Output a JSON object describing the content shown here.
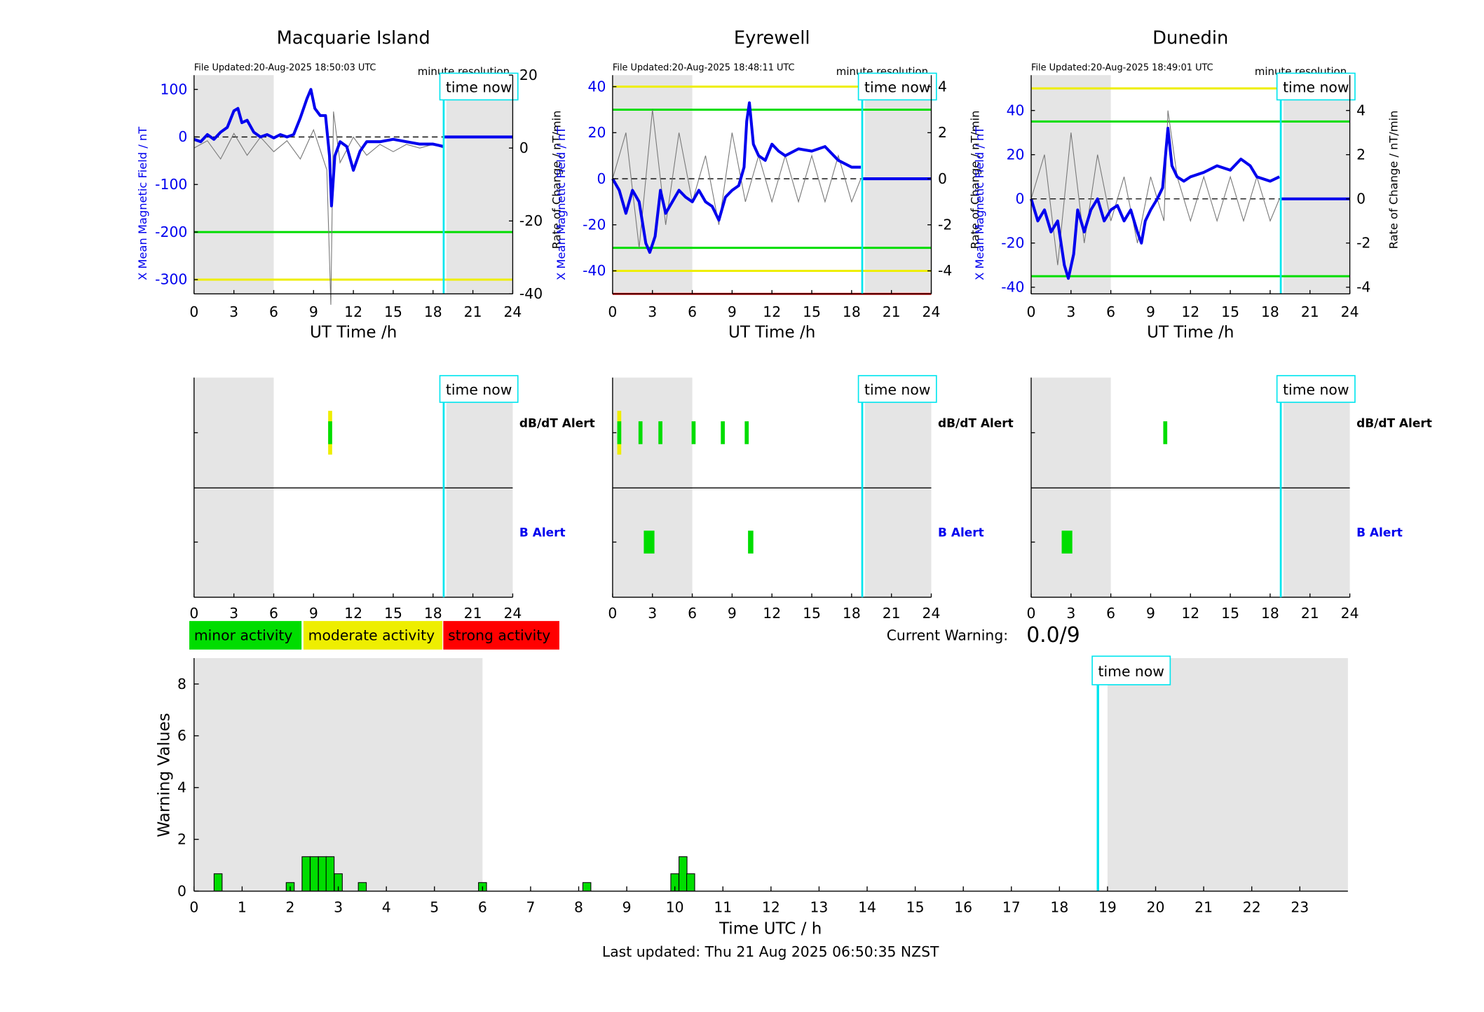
{
  "stations": [
    {
      "name": "Macquarie Island",
      "file_updated": "File Updated:20-Aug-2025 18:50:03 UTC",
      "resolution": "minute resolution",
      "ylabel_left": "X Mean Magnetic Field / nT",
      "ylabel_right": "Rate of Change / nT/min",
      "xlabel": "UT Time /h",
      "ylim": [
        -330,
        130
      ],
      "yticks": [
        100,
        0,
        -100,
        -200,
        -300
      ],
      "ylim_right": [
        -40,
        20
      ],
      "yticks_right": [
        20,
        0,
        -20,
        -40
      ],
      "threshold_lines": [
        {
          "value": -200,
          "color": "#00dd00"
        },
        {
          "value": -300,
          "color": "#eeee00"
        }
      ],
      "field_series": [
        [
          0,
          -5
        ],
        [
          0.5,
          -10
        ],
        [
          1,
          5
        ],
        [
          1.5,
          -5
        ],
        [
          2,
          10
        ],
        [
          2.5,
          20
        ],
        [
          3,
          55
        ],
        [
          3.3,
          60
        ],
        [
          3.6,
          30
        ],
        [
          4,
          35
        ],
        [
          4.5,
          10
        ],
        [
          5,
          0
        ],
        [
          5.5,
          5
        ],
        [
          6,
          -2
        ],
        [
          6.5,
          5
        ],
        [
          7,
          0
        ],
        [
          7.5,
          5
        ],
        [
          8,
          40
        ],
        [
          8.5,
          80
        ],
        [
          8.8,
          100
        ],
        [
          9.1,
          60
        ],
        [
          9.5,
          45
        ],
        [
          9.9,
          45
        ],
        [
          10.2,
          -40
        ],
        [
          10.35,
          -145
        ],
        [
          10.6,
          -40
        ],
        [
          11,
          -10
        ],
        [
          11.5,
          -20
        ],
        [
          12,
          -70
        ],
        [
          12.5,
          -30
        ],
        [
          13,
          -10
        ],
        [
          14,
          -10
        ],
        [
          15,
          -5
        ],
        [
          16,
          -10
        ],
        [
          17,
          -15
        ],
        [
          18,
          -15
        ],
        [
          18.8,
          -20
        ]
      ],
      "roc_series": [
        [
          0,
          0
        ],
        [
          1,
          2
        ],
        [
          2,
          -3
        ],
        [
          3,
          4
        ],
        [
          4,
          -2
        ],
        [
          5,
          3
        ],
        [
          6,
          -1
        ],
        [
          7,
          2
        ],
        [
          8,
          -3
        ],
        [
          9,
          5
        ],
        [
          10,
          -6
        ],
        [
          10.3,
          -43
        ],
        [
          10.5,
          10
        ],
        [
          11,
          -4
        ],
        [
          12,
          3
        ],
        [
          13,
          -2
        ],
        [
          14,
          1
        ],
        [
          15,
          -1
        ],
        [
          16,
          1
        ],
        [
          17,
          0
        ],
        [
          18,
          1
        ],
        [
          18.8,
          0
        ]
      ],
      "dbdt_alerts": [
        {
          "hour": 10.25,
          "width": 0.3,
          "level": "moderate"
        },
        {
          "hour": 10.25,
          "width": 0.3,
          "level": "minor"
        }
      ],
      "b_alerts": []
    },
    {
      "name": "Eyrewell",
      "file_updated": "File Updated:20-Aug-2025 18:48:11 UTC",
      "resolution": "minute resolution",
      "ylabel_left": "X Mean Magnetic Field / nT",
      "ylabel_right": "Rate of Change / nT/min",
      "xlabel": "UT Time /h",
      "ylim": [
        -50,
        45
      ],
      "yticks": [
        40,
        20,
        0,
        -20,
        -40
      ],
      "ylim_right": [
        -5,
        4.5
      ],
      "yticks_right": [
        4,
        2,
        0,
        -2,
        -4
      ],
      "threshold_lines": [
        {
          "value": 40,
          "color": "#eeee00"
        },
        {
          "value": 30,
          "color": "#00dd00"
        },
        {
          "value": -30,
          "color": "#00dd00"
        },
        {
          "value": -40,
          "color": "#eeee00"
        },
        {
          "value": -50,
          "color": "#ff0000"
        }
      ],
      "field_series": [
        [
          0,
          0
        ],
        [
          0.5,
          -5
        ],
        [
          1,
          -15
        ],
        [
          1.5,
          -5
        ],
        [
          2,
          -10
        ],
        [
          2.5,
          -28
        ],
        [
          2.8,
          -32
        ],
        [
          3.2,
          -25
        ],
        [
          3.6,
          -5
        ],
        [
          4,
          -15
        ],
        [
          4.5,
          -10
        ],
        [
          5,
          -5
        ],
        [
          5.5,
          -8
        ],
        [
          6,
          -10
        ],
        [
          6.5,
          -5
        ],
        [
          7,
          -10
        ],
        [
          7.5,
          -12
        ],
        [
          8,
          -18
        ],
        [
          8.5,
          -8
        ],
        [
          9,
          -5
        ],
        [
          9.5,
          -3
        ],
        [
          9.9,
          5
        ],
        [
          10.1,
          25
        ],
        [
          10.3,
          33
        ],
        [
          10.6,
          15
        ],
        [
          11,
          10
        ],
        [
          11.5,
          8
        ],
        [
          12,
          15
        ],
        [
          12.5,
          12
        ],
        [
          13,
          10
        ],
        [
          14,
          13
        ],
        [
          15,
          12
        ],
        [
          16,
          14
        ],
        [
          17,
          8
        ],
        [
          18,
          5
        ],
        [
          18.7,
          5
        ]
      ],
      "roc_series": [
        [
          0,
          0
        ],
        [
          1,
          2
        ],
        [
          2,
          -3
        ],
        [
          3,
          3
        ],
        [
          4,
          -2
        ],
        [
          5,
          2
        ],
        [
          6,
          -1
        ],
        [
          7,
          1
        ],
        [
          8,
          -2
        ],
        [
          9,
          2
        ],
        [
          10,
          -1
        ],
        [
          11,
          1
        ],
        [
          12,
          -1
        ],
        [
          13,
          1
        ],
        [
          14,
          -1
        ],
        [
          15,
          1
        ],
        [
          16,
          -1
        ],
        [
          17,
          1
        ],
        [
          18,
          -1
        ],
        [
          18.7,
          0
        ]
      ],
      "dbdt_alerts": [
        {
          "hour": 0.5,
          "width": 0.3,
          "level": "moderate"
        },
        {
          "hour": 0.5,
          "width": 0.3,
          "level": "minor"
        },
        {
          "hour": 2.1,
          "width": 0.3,
          "level": "minor"
        },
        {
          "hour": 3.6,
          "width": 0.3,
          "level": "minor"
        },
        {
          "hour": 6.1,
          "width": 0.3,
          "level": "minor"
        },
        {
          "hour": 8.3,
          "width": 0.3,
          "level": "minor"
        },
        {
          "hour": 10.1,
          "width": 0.3,
          "level": "minor"
        }
      ],
      "b_alerts": [
        {
          "hour": 2.75,
          "width": 0.8,
          "level": "minor"
        },
        {
          "hour": 10.4,
          "width": 0.4,
          "level": "minor"
        }
      ]
    },
    {
      "name": "Dunedin",
      "file_updated": "File Updated:20-Aug-2025 18:49:01 UTC",
      "resolution": "minute resolution",
      "ylabel_left": "X Mean Magnetic Field / nT",
      "ylabel_right": "Rate of Change / nT/min",
      "xlabel": "UT Time /h",
      "ylim": [
        -43,
        56
      ],
      "yticks": [
        40,
        20,
        0,
        -20,
        -40
      ],
      "ylim_right": [
        -4.3,
        5.6
      ],
      "yticks_right": [
        4,
        2,
        0,
        -2,
        -4
      ],
      "threshold_lines": [
        {
          "value": 50,
          "color": "#eeee00"
        },
        {
          "value": 35,
          "color": "#00dd00"
        },
        {
          "value": -35,
          "color": "#00dd00"
        }
      ],
      "field_series": [
        [
          0,
          0
        ],
        [
          0.5,
          -10
        ],
        [
          1,
          -5
        ],
        [
          1.5,
          -15
        ],
        [
          2,
          -10
        ],
        [
          2.5,
          -30
        ],
        [
          2.8,
          -36
        ],
        [
          3.2,
          -25
        ],
        [
          3.5,
          -5
        ],
        [
          4,
          -15
        ],
        [
          4.5,
          -5
        ],
        [
          5,
          0
        ],
        [
          5.5,
          -10
        ],
        [
          6,
          -5
        ],
        [
          6.5,
          -3
        ],
        [
          7,
          -10
        ],
        [
          7.5,
          -5
        ],
        [
          8,
          -15
        ],
        [
          8.3,
          -20
        ],
        [
          8.6,
          -10
        ],
        [
          9,
          -5
        ],
        [
          9.5,
          0
        ],
        [
          9.9,
          5
        ],
        [
          10.3,
          32
        ],
        [
          10.6,
          15
        ],
        [
          11,
          10
        ],
        [
          11.5,
          8
        ],
        [
          12,
          10
        ],
        [
          13,
          12
        ],
        [
          14,
          15
        ],
        [
          15,
          13
        ],
        [
          15.8,
          18
        ],
        [
          16.5,
          15
        ],
        [
          17,
          10
        ],
        [
          18,
          8
        ],
        [
          18.7,
          10
        ]
      ],
      "roc_series": [
        [
          0,
          0
        ],
        [
          1,
          2
        ],
        [
          2,
          -3
        ],
        [
          3,
          3
        ],
        [
          4,
          -2
        ],
        [
          5,
          2
        ],
        [
          6,
          -1
        ],
        [
          7,
          1
        ],
        [
          8,
          -2
        ],
        [
          9,
          1
        ],
        [
          10,
          -1
        ],
        [
          10.3,
          4
        ],
        [
          11,
          1
        ],
        [
          12,
          -1
        ],
        [
          13,
          1
        ],
        [
          14,
          -1
        ],
        [
          15,
          1
        ],
        [
          16,
          -1
        ],
        [
          17,
          1
        ],
        [
          18,
          -1
        ],
        [
          18.7,
          0
        ]
      ],
      "dbdt_alerts": [
        {
          "hour": 10.1,
          "width": 0.3,
          "level": "minor"
        }
      ],
      "b_alerts": [
        {
          "hour": 2.7,
          "width": 0.8,
          "level": "minor"
        }
      ]
    }
  ],
  "time_now_label": "time now",
  "time_now_hour": 18.8,
  "xlim": [
    0,
    24
  ],
  "xticks": [
    0,
    3,
    6,
    9,
    12,
    15,
    18,
    21,
    24
  ],
  "dbdt_alert_label": "dB/dT Alert",
  "b_alert_label": "B Alert",
  "legend": [
    {
      "label": "minor activity",
      "color": "#00dd00"
    },
    {
      "label": "moderate activity",
      "color": "#eeee00"
    },
    {
      "label": "strong activity",
      "color": "#ff0000"
    }
  ],
  "current_warning_label": "Current Warning:",
  "current_warning_value": "0.0/9",
  "chart_data": [
    {
      "type": "bar",
      "title": "",
      "xlabel": "Time UTC / h",
      "ylabel": "Warning Values",
      "xlim": [
        0,
        24
      ],
      "ylim": [
        0,
        9
      ],
      "xticks": [
        0,
        1,
        2,
        3,
        4,
        5,
        6,
        7,
        8,
        9,
        10,
        11,
        12,
        13,
        14,
        15,
        16,
        17,
        18,
        19,
        20,
        21,
        22,
        23
      ],
      "yticks": [
        0,
        2,
        4,
        6,
        8
      ],
      "bar_width_h": 0.1667,
      "bar_color": "#00dd00",
      "x": [
        0.5,
        2.0,
        2.33,
        2.5,
        2.67,
        2.83,
        3.0,
        3.5,
        6.0,
        8.17,
        10.0,
        10.17,
        10.33
      ],
      "values": [
        0.67,
        0.33,
        1.33,
        1.33,
        1.33,
        1.33,
        0.67,
        0.33,
        0.33,
        0.33,
        0.67,
        1.33,
        0.67
      ],
      "time_now_hour": 18.8,
      "shaded_hours": [
        [
          0,
          6
        ],
        [
          19,
          24
        ]
      ]
    }
  ],
  "last_updated": "Last updated: Thu 21 Aug 2025 06:50:35 NZST"
}
